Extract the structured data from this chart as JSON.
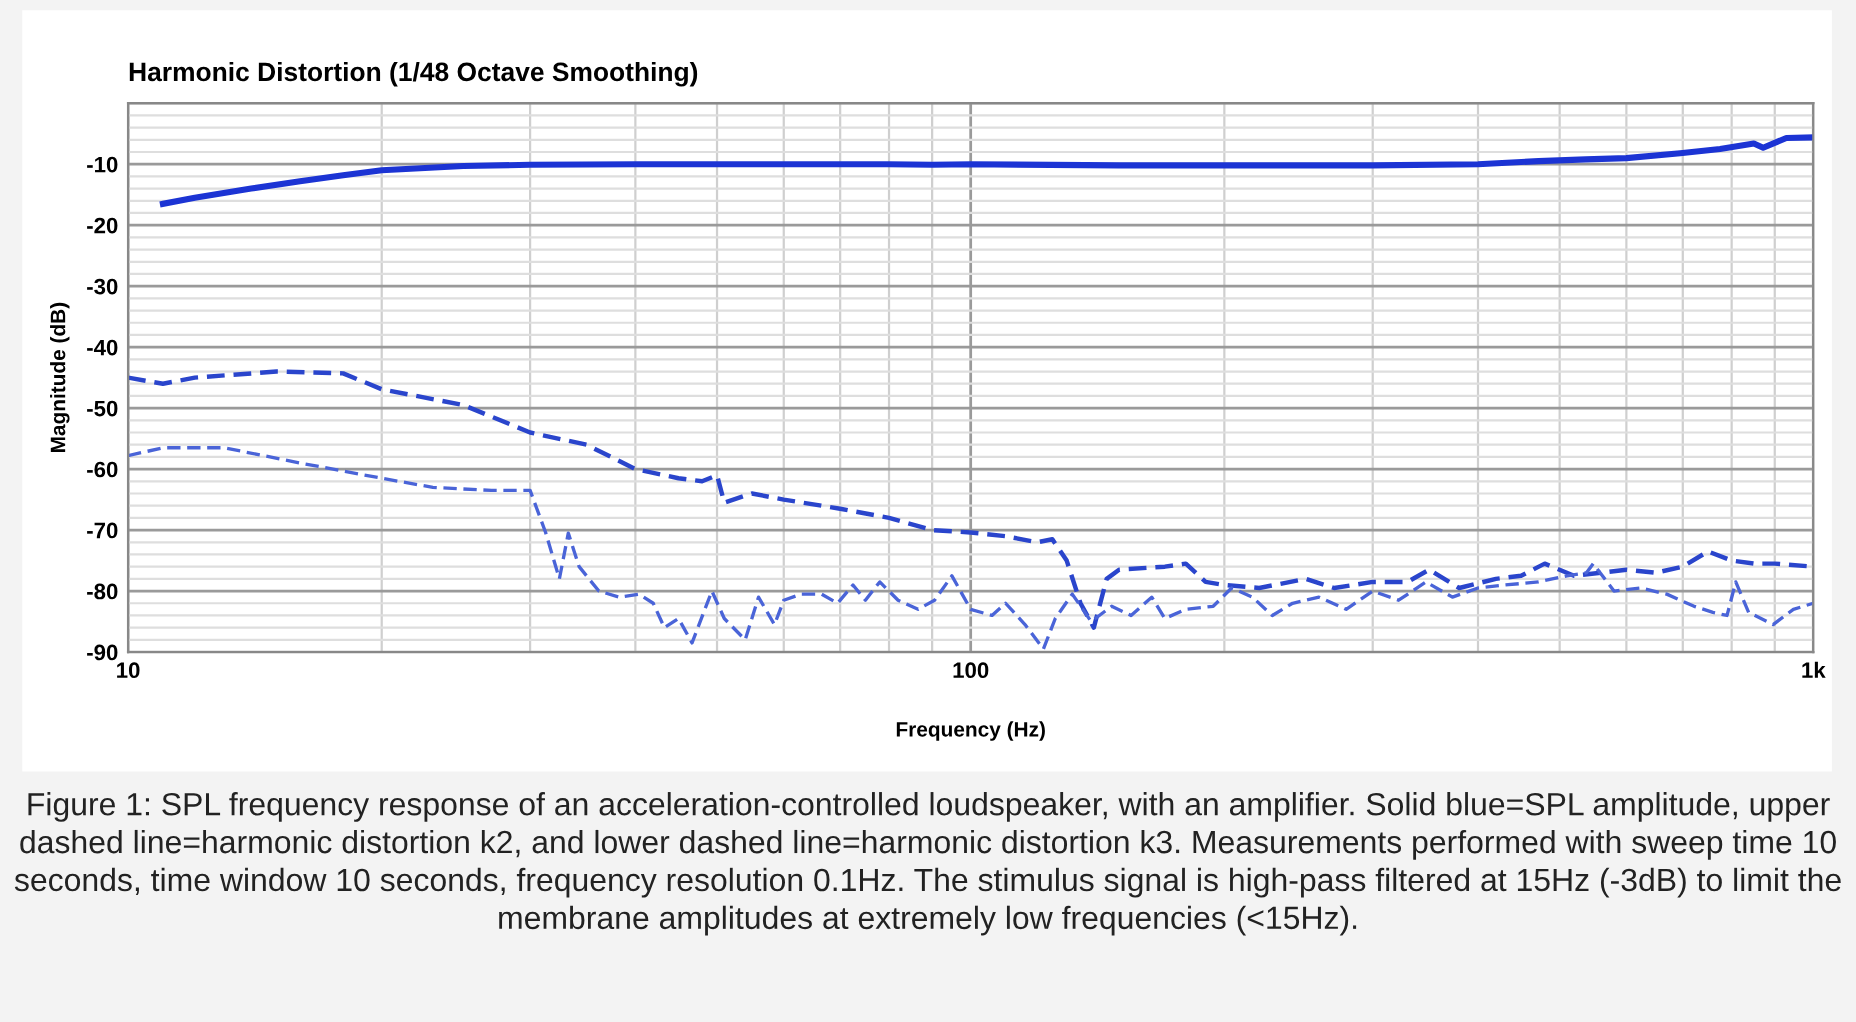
{
  "chart_data": {
    "type": "line",
    "title": "Harmonic Distortion (1/48 Octave Smoothing)",
    "xlabel": "Frequency (Hz)",
    "ylabel": "Magnitude (dB)",
    "log": "x",
    "grid": true,
    "legend": false,
    "marker": "none",
    "xlim": [
      10,
      1000
    ],
    "xticks": [
      10,
      100,
      {
        "value": 1000,
        "label": "1k"
      }
    ],
    "ylim": [
      -90,
      0
    ],
    "yticks": [
      {
        "value": -90,
        "label": "-90"
      },
      {
        "value": -80,
        "label": "-80"
      },
      {
        "value": -70,
        "label": "-70"
      },
      {
        "value": -60,
        "label": "-60"
      },
      {
        "value": -50,
        "label": "-50"
      },
      {
        "value": -40,
        "label": "-40"
      },
      {
        "value": -30,
        "label": "-30"
      },
      {
        "value": -20,
        "label": "-20"
      },
      {
        "value": -10,
        "label": "-10"
      },
      {
        "value": 0,
        "label": null
      }
    ],
    "series": [
      {
        "color": "#1c34d4",
        "line_style": "solid",
        "x": [
          11,
          12,
          14,
          16,
          18,
          20,
          25,
          30,
          40,
          60,
          80,
          90,
          100,
          150,
          200,
          300,
          400,
          472,
          537,
          600,
          695,
          775,
          850,
          872,
          929,
          1000
        ],
        "values": [
          -16.5,
          -15.5,
          -14,
          -12.8,
          -11.8,
          -11,
          -10.3,
          -10.1,
          -10,
          -10,
          -10,
          -10.1,
          -10,
          -10.2,
          -10.2,
          -10.2,
          -10,
          -9.5,
          -9.2,
          -9,
          -8.2,
          -7.5,
          -6.6,
          -7.3,
          -5.7,
          -5.6
        ]
      },
      {
        "color": "#2a45cc",
        "line_style": "dashed",
        "x": [
          10,
          11,
          12,
          15,
          18,
          20,
          25,
          30,
          35,
          40,
          45,
          48,
          50,
          51,
          55,
          60,
          70,
          80,
          90,
          100,
          110,
          120,
          125,
          130,
          135,
          140,
          145,
          150,
          170,
          180,
          190,
          200,
          220,
          250,
          270,
          300,
          330,
          350,
          380,
          420,
          450,
          480,
          520,
          560,
          600,
          650,
          700,
          750,
          800,
          850,
          900,
          1000
        ],
        "values": [
          -45,
          -46,
          -45,
          -44,
          -44.3,
          -46.9,
          -49.5,
          -54,
          -56,
          -60,
          -61.5,
          -62,
          -61,
          -65.5,
          -64,
          -65,
          -66.5,
          -68,
          -70,
          -70.4,
          -71,
          -72,
          -71.5,
          -75,
          -82,
          -86,
          -78,
          -76.5,
          -76,
          -75.5,
          -78.5,
          -79,
          -79.5,
          -78,
          -79.5,
          -78.5,
          -78.5,
          -76.5,
          -79.5,
          -78,
          -77.5,
          -75.5,
          -77.5,
          -77,
          -76.5,
          -77,
          -76,
          -73.5,
          -75,
          -75.5,
          -75.5,
          -76
        ]
      },
      {
        "color": "#4a64d8",
        "line_style": "dashed",
        "x": [
          10,
          11,
          13,
          16,
          20,
          23,
          27,
          30,
          31.3,
          32.5,
          33.3,
          34.3,
          36.2,
          38.3,
          40.4,
          42,
          43.3,
          45,
          46.7,
          49.3,
          51,
          54,
          56,
          58.5,
          60,
          63,
          66.5,
          69.5,
          72.5,
          75,
          78,
          82,
          86.6,
          90.6,
          95,
          100,
          106,
          110,
          116,
          122,
          126,
          132,
          139,
          147,
          155,
          164,
          170,
          180,
          194,
          204,
          216,
          228,
          241,
          259,
          279,
          300,
          322,
          347,
          373,
          400,
          431,
          472,
          510,
          538,
          548,
          580,
          624,
          670,
          722,
          760,
          790,
          809,
          838,
          896,
          947,
          1000
        ],
        "values": [
          -57.8,
          -56.5,
          -56.5,
          -59,
          -61.5,
          -63,
          -63.5,
          -63.5,
          -70.4,
          -78,
          -70.5,
          -76,
          -80,
          -81,
          -80.5,
          -82,
          -86,
          -84.5,
          -88.5,
          -80,
          -84.5,
          -88,
          -81,
          -85.5,
          -81.5,
          -80.5,
          -80.5,
          -82,
          -79,
          -81.5,
          -78.5,
          -81.5,
          -83,
          -81.5,
          -77.5,
          -83,
          -84,
          -82,
          -85.5,
          -89.5,
          -84.5,
          -80.5,
          -85,
          -82.5,
          -84,
          -81,
          -84.5,
          -83,
          -82.5,
          -79.5,
          -81,
          -84,
          -82,
          -81,
          -83,
          -80,
          -81.5,
          -78.5,
          -81,
          -79.5,
          -79,
          -78.5,
          -77.5,
          -77,
          -75.5,
          -80,
          -79.5,
          -80.5,
          -82.5,
          -83.5,
          -84,
          -78.5,
          -83.5,
          -85.5,
          -83,
          -82
        ]
      }
    ],
    "annotations": [
      "Figure 1: SPL frequency response of an acceleration-controlled loudspeaker, with an amplifier. Solid blue=SPL amplitude, upper dashed line=harmonic distortion k2, and lower dashed line=harmonic distortion k3. Measurements performed with sweep time 10 seconds, time window 10 seconds, frequency resolution 0.1Hz. The stimulus signal is high-pass filtered at 15Hz (-3dB) to limit the membrane amplitudes at extremely low frequencies (<15Hz)."
    ]
  }
}
